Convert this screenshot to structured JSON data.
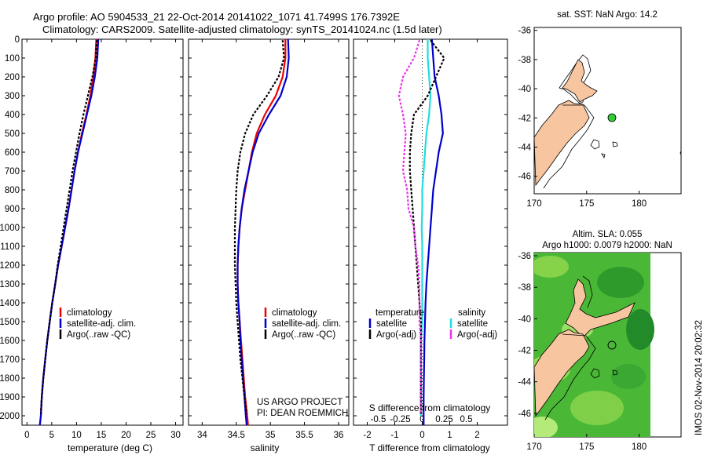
{
  "header": {
    "title": "Argo profile: AO 5904533_21 22-Oct-2014 20141022_1071 41.7499S 176.7392E",
    "subtitle": "Climatology: CARS2009. Satellite-adjusted climatology: synTS_20141024.nc (1.5d later)"
  },
  "credits": {
    "project": "US ARGO PROJECT",
    "pi": "PI: DEAN ROEMMICH"
  },
  "stamp": "IMOS 02-Nov-2014 20:02:32",
  "maps": {
    "sst": {
      "title": "sat. SST: NaN Argo: 14.2",
      "lon_ticks": [
        170,
        175,
        180
      ],
      "lat_ticks": [
        -36,
        -38,
        -40,
        -42,
        -44,
        -46
      ],
      "xlim": [
        170,
        184
      ],
      "ylim": [
        -47.2,
        -35.8
      ],
      "marker_color": "#33cc33"
    },
    "sla": {
      "title": "Altim. SLA: 0.055",
      "subtitle": "Argo h1000: 0.0079 h2000: NaN",
      "lon_ticks": [
        170,
        175,
        180
      ],
      "lat_ticks": [
        -36,
        -38,
        -40,
        -42,
        -44,
        -46
      ],
      "xlim": [
        170,
        184
      ],
      "ylim": [
        -47.5,
        -35.8
      ]
    }
  },
  "colors": {
    "climatology": "#ee0000",
    "satellite": "#0000cc",
    "argo": "#000000",
    "salinity_satellite": "#22dddd",
    "salinity_argo": "#ee33ee",
    "land": "#f7c59f"
  },
  "chart_data": [
    {
      "type": "line",
      "xlabel": "temperature (deg C)",
      "xlim": [
        -1,
        31.5
      ],
      "ylim": [
        0,
        2050
      ],
      "xticks": [
        0,
        5,
        10,
        15,
        20,
        25,
        30
      ],
      "yticks": [
        0,
        100,
        200,
        300,
        400,
        500,
        600,
        700,
        800,
        900,
        1000,
        1100,
        1200,
        1300,
        1400,
        1500,
        1600,
        1700,
        1800,
        1900,
        2000
      ],
      "legend": [
        "climatology",
        "satellite-adj. clim.",
        "Argo(..raw -QC)"
      ],
      "series": [
        {
          "key": "climatology",
          "color": "#ee0000",
          "x": [
            14.0,
            13.8,
            13.4,
            12.8,
            12.0,
            11.1,
            10.3,
            9.6,
            9.0,
            8.4,
            7.7,
            7.0,
            6.3,
            5.7,
            5.1,
            4.6,
            4.1,
            3.7,
            3.3,
            3.0,
            2.8,
            2.6,
            2.4
          ],
          "y": [
            0,
            100,
            200,
            300,
            400,
            500,
            600,
            700,
            800,
            900,
            1000,
            1100,
            1200,
            1300,
            1400,
            1500,
            1600,
            1700,
            1800,
            1900,
            2000,
            2050,
            2080
          ]
        },
        {
          "key": "satellite",
          "color": "#0000cc",
          "x": [
            14.4,
            14.2,
            13.7,
            13.0,
            12.1,
            11.2,
            10.3,
            9.6,
            9.0,
            8.4,
            7.7,
            7.0,
            6.3,
            5.7,
            5.1,
            4.6,
            4.1,
            3.7,
            3.3,
            3.0,
            2.8,
            2.6,
            2.4
          ],
          "y": [
            0,
            100,
            200,
            300,
            400,
            500,
            600,
            700,
            800,
            900,
            1000,
            1100,
            1200,
            1300,
            1400,
            1500,
            1600,
            1700,
            1800,
            1900,
            2000,
            2050,
            2080
          ]
        },
        {
          "key": "argo",
          "color": "#000000",
          "dash": true,
          "x": [
            14.1,
            13.9,
            13.2,
            12.3,
            11.4,
            10.6,
            9.9,
            9.2,
            8.6,
            8.0,
            7.4,
            6.8,
            6.2,
            5.7,
            5.1,
            4.6,
            4.1,
            3.7,
            3.3,
            3.0,
            2.8
          ],
          "y": [
            5,
            100,
            200,
            300,
            400,
            500,
            600,
            700,
            800,
            900,
            1000,
            1100,
            1200,
            1300,
            1400,
            1500,
            1600,
            1700,
            1800,
            1900,
            1990
          ]
        }
      ]
    },
    {
      "type": "line",
      "xlabel": "salinity",
      "xlim": [
        33.8,
        36.15
      ],
      "ylim": [
        0,
        2050
      ],
      "xticks": [
        34,
        34.5,
        35,
        35.5,
        36
      ],
      "legend": [
        "climatology",
        "satellite-adj. clim.",
        "Argo(..raw -QC)"
      ],
      "series": [
        {
          "key": "climatology",
          "color": "#ee0000",
          "x": [
            35.22,
            35.22,
            35.18,
            35.08,
            34.92,
            34.8,
            34.73,
            34.68,
            34.63,
            34.58,
            34.55,
            34.53,
            34.52,
            34.52,
            34.53,
            34.55,
            34.57,
            34.59,
            34.61,
            34.63,
            34.66,
            34.68
          ],
          "y": [
            0,
            100,
            200,
            300,
            400,
            500,
            600,
            700,
            800,
            900,
            1000,
            1100,
            1200,
            1300,
            1400,
            1500,
            1600,
            1700,
            1800,
            1900,
            2000,
            2080
          ]
        },
        {
          "key": "satellite",
          "color": "#0000cc",
          "x": [
            35.26,
            35.27,
            35.24,
            35.15,
            34.98,
            34.83,
            34.74,
            34.68,
            34.62,
            34.58,
            34.55,
            34.53,
            34.52,
            34.52,
            34.53,
            34.55,
            34.56,
            34.58,
            34.6,
            34.62,
            34.64,
            34.66
          ],
          "y": [
            0,
            100,
            200,
            300,
            400,
            500,
            600,
            700,
            800,
            900,
            1000,
            1100,
            1200,
            1300,
            1400,
            1500,
            1600,
            1700,
            1800,
            1900,
            2000,
            2080
          ]
        },
        {
          "key": "argo",
          "color": "#000000",
          "dash": true,
          "x": [
            35.18,
            35.2,
            35.12,
            34.95,
            34.75,
            34.63,
            34.56,
            34.52,
            34.5,
            34.49,
            34.48,
            34.48,
            34.48,
            34.49,
            34.5,
            34.52,
            34.54,
            34.56,
            34.59,
            34.62,
            34.65
          ],
          "y": [
            5,
            100,
            200,
            300,
            400,
            500,
            600,
            700,
            800,
            900,
            1000,
            1100,
            1200,
            1300,
            1400,
            1500,
            1600,
            1700,
            1800,
            1900,
            1990
          ]
        }
      ]
    },
    {
      "type": "line",
      "xlabel": "T difference from climatology",
      "xlabel2": "S difference from climatology",
      "t_xlim": [
        -2.5,
        3.1
      ],
      "t_xticks": [
        -2,
        -1,
        0,
        1,
        2
      ],
      "s_ticks": [
        {
          "label": "-0.5",
          "t": -1.6
        },
        {
          "label": "-0.25",
          "t": -0.8
        },
        {
          "label": "0",
          "t": 0.0
        },
        {
          "label": "0.25",
          "t": 0.8
        },
        {
          "label": "0.5",
          "t": 1.6
        }
      ],
      "legend": {
        "temperature_heading": "temperature",
        "t_satellite": "satellite",
        "t_argo": "Argo(-adj)",
        "salinity_heading": "salinity",
        "s_satellite": "satellite",
        "s_argo": "Argo(-adj)"
      },
      "series": [
        {
          "key": "t_satellite",
          "color": "#0000cc",
          "x": [
            0.35,
            0.4,
            0.45,
            0.6,
            0.7,
            0.75,
            0.6,
            0.5,
            0.4,
            0.35,
            0.3,
            0.25,
            0.2,
            0.15,
            0.12,
            0.1,
            0.08,
            0.07,
            0.06,
            0.05,
            0.05,
            0.05
          ],
          "y": [
            0,
            100,
            200,
            300,
            400,
            500,
            600,
            700,
            800,
            900,
            1000,
            1100,
            1200,
            1300,
            1400,
            1500,
            1600,
            1700,
            1800,
            1900,
            2000,
            2080
          ]
        },
        {
          "key": "s_satellite",
          "color": "#22dddd",
          "x": [
            0.2,
            0.2,
            0.25,
            0.3,
            0.25,
            0.15,
            0.1,
            0.05,
            0.0,
            0.0,
            -0.02,
            0.0,
            0.0,
            0.0,
            0.0,
            0.0,
            -0.05,
            -0.05,
            -0.05,
            -0.05,
            -0.05
          ],
          "y": [
            0,
            100,
            200,
            300,
            400,
            500,
            600,
            700,
            800,
            900,
            1000,
            1100,
            1200,
            1300,
            1400,
            1500,
            1600,
            1700,
            1800,
            1900,
            2000
          ]
        },
        {
          "key": "t_argo",
          "color": "#000000",
          "dash": true,
          "x": [
            0.3,
            0.8,
            0.5,
            0.2,
            -0.3,
            -0.4,
            -0.45,
            -0.45,
            -0.4,
            -0.35,
            -0.3,
            -0.25,
            -0.2,
            -0.15,
            -0.1,
            -0.05,
            -0.05,
            -0.05,
            -0.05,
            -0.05,
            -0.05
          ],
          "y": [
            5,
            100,
            200,
            300,
            400,
            500,
            600,
            700,
            800,
            900,
            1000,
            1100,
            1200,
            1300,
            1400,
            1500,
            1600,
            1700,
            1800,
            1900,
            1990
          ]
        },
        {
          "key": "s_argo",
          "color": "#ee33ee",
          "dash": true,
          "x": [
            -0.1,
            -0.3,
            -0.7,
            -0.85,
            -0.7,
            -0.6,
            -0.65,
            -0.7,
            -0.55,
            -0.5,
            -0.3,
            -0.25,
            -0.15,
            -0.1,
            -0.1,
            -0.1,
            -0.05,
            -0.05,
            -0.05,
            -0.05,
            -0.05
          ],
          "y": [
            5,
            100,
            200,
            300,
            400,
            500,
            600,
            700,
            800,
            900,
            1000,
            1100,
            1200,
            1300,
            1400,
            1500,
            1600,
            1700,
            1800,
            1900,
            1990
          ]
        }
      ]
    }
  ]
}
